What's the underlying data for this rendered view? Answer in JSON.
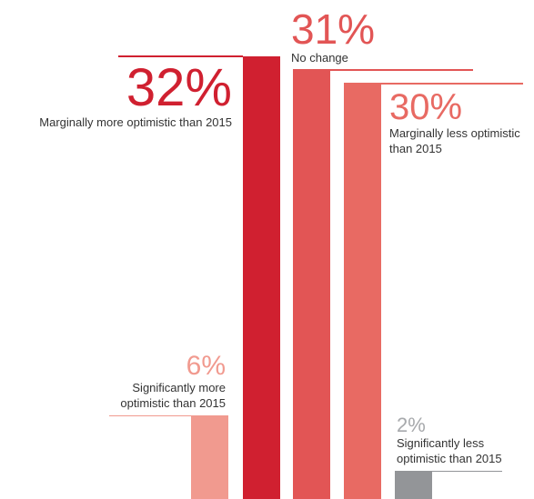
{
  "chart_data": {
    "type": "bar",
    "categories": [
      "Significantly more optimistic than 2015",
      "Marginally more optimistic than 2015",
      "No change",
      "Marginally less optimistic than 2015",
      "Significantly less optimistic than 2015"
    ],
    "values": [
      6,
      32,
      31,
      30,
      2
    ],
    "value_labels": [
      "6%",
      "32%",
      "31%",
      "30%",
      "2%"
    ],
    "colors": [
      "#f19a8f",
      "#d02030",
      "#e25555",
      "#e86a63",
      "#939598"
    ]
  }
}
